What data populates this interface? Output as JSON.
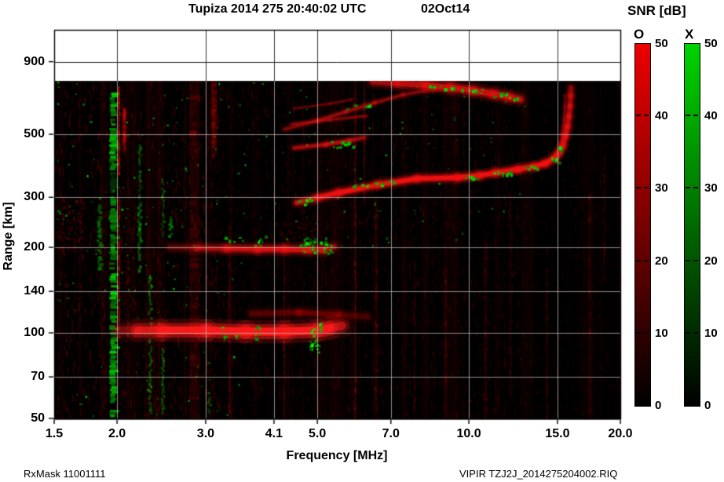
{
  "title": {
    "main": "Tupiza 2014 275 20:40:02 UTC",
    "date": "02Oct14"
  },
  "footer": {
    "left": "RxMask 11001111",
    "right": "VIPIR  TZJ2J_2014275204002.RIQ"
  },
  "colorbar": {
    "title": "SNR [dB]",
    "vmin": 0,
    "vmax": 50,
    "ticks": [
      50,
      40,
      30,
      20,
      10,
      0
    ],
    "bars": [
      {
        "label": "O",
        "top_color": "#ee0000"
      },
      {
        "label": "X",
        "top_color": "#00d400"
      }
    ]
  },
  "chart_data": {
    "type": "heatmap",
    "title": "Tupiza 2014 275 20:40:02 UTC 02Oct14",
    "xlabel": "Frequency [MHz]",
    "ylabel": "Range [km]",
    "x_scale": "log",
    "y_scale": "log",
    "xlim": [
      1.5,
      20.0
    ],
    "ylim": [
      50,
      1165
    ],
    "data_max_range_km": 770,
    "grid": true,
    "legend": "SNR [dB] 0-50; O polarization = red, X polarization = green",
    "x_ticks": [
      {
        "v": 1.5,
        "label": "1.5"
      },
      {
        "v": 2.0,
        "label": "2.0"
      },
      {
        "v": 3.0,
        "label": "3.0"
      },
      {
        "v": 4.1,
        "label": "4.1"
      },
      {
        "v": 5.0,
        "label": "5.0"
      },
      {
        "v": 7.0,
        "label": "7.0"
      },
      {
        "v": 10.0,
        "label": "10.0"
      },
      {
        "v": 15.0,
        "label": "15.0"
      },
      {
        "v": 20.0,
        "label": "20.0"
      }
    ],
    "y_ticks": [
      {
        "v": 900,
        "label": "900"
      },
      {
        "v": 500,
        "label": "500"
      },
      {
        "v": 300,
        "label": "300"
      },
      {
        "v": 200,
        "label": "200"
      },
      {
        "v": 140,
        "label": "140"
      },
      {
        "v": 100,
        "label": "100"
      },
      {
        "v": 70,
        "label": "70"
      },
      {
        "v": 50,
        "label": "50"
      }
    ],
    "noise": {
      "seed": 20140275,
      "columns": 44,
      "red_dashes": 5200,
      "red_specks": 2600,
      "green_specks": 240
    },
    "traces": [
      {
        "name": "E-layer-main",
        "color": "#ff1a1a",
        "w": 13,
        "pts": [
          [
            2.02,
            102,
            0.15
          ],
          [
            2.2,
            102,
            0.5
          ],
          [
            2.45,
            102,
            0.95
          ],
          [
            3.0,
            102,
            1
          ],
          [
            3.6,
            101,
            1
          ],
          [
            4.3,
            101,
            1
          ],
          [
            5.0,
            102,
            1
          ],
          [
            5.3,
            104,
            0.8
          ],
          [
            5.6,
            106,
            0.3
          ]
        ]
      },
      {
        "name": "E-layer-upper-echo",
        "color": "#c00000",
        "w": 8,
        "pts": [
          [
            3.7,
            117,
            0.25
          ],
          [
            4.6,
            118,
            0.4
          ],
          [
            5.5,
            116,
            0.35
          ],
          [
            6.3,
            114,
            0.15
          ]
        ]
      },
      {
        "name": "layer-200km",
        "color": "#e81010",
        "w": 8,
        "pts": [
          [
            2.55,
            200,
            0.15
          ],
          [
            2.9,
            199,
            0.4
          ],
          [
            3.3,
            198,
            0.7
          ],
          [
            3.8,
            197,
            0.85
          ],
          [
            4.3,
            197,
            0.9
          ],
          [
            4.8,
            196,
            0.85
          ],
          [
            5.15,
            196,
            0.7
          ],
          [
            5.4,
            201,
            0.3
          ]
        ]
      },
      {
        "name": "F-layer-main",
        "color": "#f01010",
        "w": 7,
        "pts": [
          [
            4.55,
            287,
            0.5
          ],
          [
            5.0,
            299,
            0.9
          ],
          [
            5.5,
            311,
            1
          ],
          [
            6.6,
            332,
            1
          ],
          [
            7.9,
            349,
            1
          ],
          [
            9.5,
            352,
            1
          ],
          [
            10.5,
            358,
            1
          ],
          [
            11.3,
            366,
            1
          ],
          [
            12.5,
            376,
            1
          ],
          [
            13.5,
            385,
            1
          ],
          [
            14.2,
            395,
            1
          ],
          [
            14.8,
            412,
            0.95
          ],
          [
            15.1,
            430,
            0.9
          ],
          [
            15.35,
            455,
            0.85
          ],
          [
            15.55,
            492,
            0.75
          ],
          [
            15.7,
            532,
            0.65
          ],
          [
            15.8,
            578,
            0.55
          ],
          [
            15.88,
            628,
            0.5
          ],
          [
            15.93,
            682,
            0.45
          ],
          [
            15.96,
            728,
            0.4
          ]
        ]
      },
      {
        "name": "F-layer-x-asymptote",
        "color": "#d01010",
        "w": 3,
        "pts": [
          [
            14.95,
            402,
            0.5
          ],
          [
            15.2,
            445,
            0.45
          ],
          [
            15.35,
            500,
            0.4
          ],
          [
            15.45,
            560,
            0.35
          ],
          [
            15.5,
            625,
            0.3
          ],
          [
            15.53,
            685,
            0.25
          ]
        ]
      },
      {
        "name": "F-satellite-trace",
        "color": "#e01010",
        "w": 5,
        "pts": [
          [
            4.5,
            447,
            0.5
          ],
          [
            5.2,
            460,
            0.7
          ],
          [
            5.8,
            475,
            0.65
          ],
          [
            6.2,
            487,
            0.4
          ]
        ]
      },
      {
        "name": "spread-streak-mid",
        "color": "#d01010",
        "w": 3.5,
        "pts": [
          [
            4.45,
            543,
            0.4
          ],
          [
            5.3,
            562,
            0.5
          ],
          [
            6.25,
            580,
            0.35
          ]
        ]
      },
      {
        "name": "spread-streak-high",
        "color": "#c81010",
        "w": 3,
        "pts": [
          [
            4.5,
            616,
            0.3
          ],
          [
            5.3,
            640,
            0.35
          ],
          [
            5.85,
            662,
            0.3
          ]
        ]
      },
      {
        "name": "oblique-arc",
        "color": "#d01010",
        "w": 4.5,
        "pts": [
          [
            4.3,
            520,
            0.35
          ],
          [
            5.0,
            558,
            0.5
          ],
          [
            5.7,
            600,
            0.55
          ],
          [
            6.5,
            645,
            0.5
          ],
          [
            7.4,
            688,
            0.45
          ],
          [
            8.5,
            718,
            0.4
          ],
          [
            9.4,
            724,
            0.35
          ]
        ]
      },
      {
        "name": "high-band-descending",
        "color": "#e01010",
        "w": 9,
        "pts": [
          [
            6.45,
            766,
            0.5
          ],
          [
            7.2,
            756,
            0.65
          ],
          [
            8.2,
            744,
            0.8
          ],
          [
            9.2,
            730,
            0.85
          ],
          [
            10.2,
            712,
            0.85
          ],
          [
            11.2,
            692,
            0.8
          ],
          [
            12.0,
            676,
            0.75
          ],
          [
            12.65,
            663,
            0.7
          ]
        ]
      }
    ],
    "green_clusters": [
      {
        "f": 3.27,
        "r": 100,
        "df": 0.06,
        "dr": 5,
        "n": 7
      },
      {
        "f": 3.45,
        "r": 96,
        "df": 0.04,
        "dr": 4,
        "n": 4
      },
      {
        "f": 3.8,
        "r": 101,
        "df": 0.05,
        "dr": 6,
        "n": 8
      },
      {
        "f": 4.88,
        "r": 97,
        "df": 0.08,
        "dr": 9,
        "n": 16
      },
      {
        "f": 5.05,
        "r": 104,
        "df": 0.05,
        "dr": 5,
        "n": 6
      },
      {
        "f": 5.0,
        "r": 89,
        "df": 0.05,
        "dr": 4,
        "n": 5
      },
      {
        "f": 3.6,
        "r": 212,
        "df": 0.35,
        "dr": 10,
        "n": 12
      },
      {
        "f": 4.9,
        "r": 205,
        "df": 0.3,
        "dr": 12,
        "n": 26
      },
      {
        "f": 5.25,
        "r": 198,
        "df": 0.12,
        "dr": 8,
        "n": 10
      },
      {
        "f": 4.7,
        "r": 293,
        "df": 0.18,
        "dr": 9,
        "n": 10
      },
      {
        "f": 5.9,
        "r": 328,
        "df": 0.12,
        "dr": 5,
        "n": 4
      },
      {
        "f": 6.2,
        "r": 332,
        "df": 0.1,
        "dr": 5,
        "n": 4
      },
      {
        "f": 6.6,
        "r": 338,
        "df": 0.12,
        "dr": 5,
        "n": 4
      },
      {
        "f": 7.0,
        "r": 342,
        "df": 0.1,
        "dr": 5,
        "n": 4
      },
      {
        "f": 10.0,
        "r": 356,
        "df": 0.35,
        "dr": 6,
        "n": 9
      },
      {
        "f": 11.6,
        "r": 368,
        "df": 0.55,
        "dr": 7,
        "n": 12
      },
      {
        "f": 13.3,
        "r": 384,
        "df": 0.45,
        "dr": 7,
        "n": 10
      },
      {
        "f": 14.8,
        "r": 408,
        "df": 0.25,
        "dr": 10,
        "n": 7
      },
      {
        "f": 15.2,
        "r": 440,
        "df": 0.12,
        "dr": 14,
        "n": 5
      },
      {
        "f": 5.6,
        "r": 462,
        "df": 0.3,
        "dr": 12,
        "n": 13
      },
      {
        "f": 6.0,
        "r": 625,
        "df": 0.35,
        "dr": 14,
        "n": 7
      },
      {
        "f": 8.6,
        "r": 740,
        "df": 0.3,
        "dr": 8,
        "n": 5
      },
      {
        "f": 9.3,
        "r": 730,
        "df": 0.4,
        "dr": 10,
        "n": 8
      },
      {
        "f": 10.4,
        "r": 712,
        "df": 0.45,
        "dr": 10,
        "n": 8
      },
      {
        "f": 11.5,
        "r": 692,
        "df": 0.45,
        "dr": 10,
        "n": 8
      },
      {
        "f": 12.3,
        "r": 672,
        "df": 0.3,
        "dr": 8,
        "n": 6
      }
    ],
    "red_patches": [
      {
        "f": 1.63,
        "r": 245,
        "df": 0.09,
        "dr": 55,
        "n": 90,
        "a": 0.3
      },
      {
        "f": 1.63,
        "r": 120,
        "df": 0.07,
        "dr": 35,
        "n": 40,
        "a": 0.18
      },
      {
        "f": 4.5,
        "r": 230,
        "df": 0.5,
        "dr": 22,
        "n": 70,
        "a": 0.22
      },
      {
        "f": 5.6,
        "r": 252,
        "df": 0.8,
        "dr": 15,
        "n": 45,
        "a": 0.15
      }
    ],
    "rfi_stripes_green": [
      {
        "f": 1.97,
        "w": 9,
        "segs": [
          [
            50,
            162,
            0.95
          ],
          [
            168,
            302,
            0.8
          ],
          [
            305,
            375,
            0.3
          ],
          [
            375,
            728,
            0.85
          ]
        ]
      },
      {
        "f": 1.85,
        "w": 5,
        "segs": [
          [
            165,
            300,
            0.6
          ]
        ]
      },
      {
        "f": 2.22,
        "w": 4,
        "segs": [
          [
            165,
            300,
            0.65
          ],
          [
            300,
            460,
            0.4
          ]
        ]
      },
      {
        "f": 2.33,
        "w": 3,
        "segs": [
          [
            52,
            160,
            0.55
          ]
        ]
      },
      {
        "f": 2.47,
        "w": 3,
        "segs": [
          [
            52,
            90,
            0.5
          ],
          [
            220,
            350,
            0.4
          ]
        ]
      },
      {
        "f": 2.56,
        "w": 4,
        "segs": [
          [
            218,
            262,
            0.6
          ]
        ]
      },
      {
        "f": 3.05,
        "w": 3,
        "segs": [
          [
            50,
            62,
            0.45
          ]
        ]
      }
    ],
    "rfi_stripes_red": [
      {
        "f": 2.07,
        "w": 4,
        "segs": [
          [
            440,
            620,
            0.4
          ]
        ]
      },
      {
        "f": 2.02,
        "w": 2.5,
        "segs": [
          [
            95,
            300,
            0.35
          ],
          [
            360,
            740,
            0.5
          ]
        ]
      },
      {
        "f": 2.85,
        "w": 13,
        "segs": [
          [
            50,
            770,
            0.16
          ]
        ]
      },
      {
        "f": 3.12,
        "w": 7,
        "segs": [
          [
            420,
            770,
            0.22
          ]
        ]
      },
      {
        "f": 3.35,
        "w": 3,
        "segs": [
          [
            50,
            240,
            0.15
          ]
        ]
      },
      {
        "f": 4.3,
        "w": 2,
        "segs": [
          [
            50,
            210,
            0.2
          ]
        ]
      },
      {
        "f": 5.95,
        "w": 2.5,
        "segs": [
          [
            50,
            770,
            0.28
          ]
        ]
      },
      {
        "f": 6.2,
        "w": 2,
        "segs": [
          [
            280,
            770,
            0.2
          ]
        ]
      },
      {
        "f": 6.55,
        "w": 4,
        "segs": [
          [
            50,
            300,
            0.15
          ]
        ]
      },
      {
        "f": 7.8,
        "w": 2,
        "segs": [
          [
            50,
            180,
            0.12
          ]
        ]
      },
      {
        "f": 9.0,
        "w": 3,
        "segs": [
          [
            50,
            170,
            0.12
          ]
        ]
      },
      {
        "f": 10.8,
        "w": 4,
        "segs": [
          [
            50,
            210,
            0.12
          ]
        ]
      },
      {
        "f": 12.1,
        "w": 3,
        "segs": [
          [
            60,
            310,
            0.1
          ]
        ]
      },
      {
        "f": 13.3,
        "w": 2,
        "segs": [
          [
            50,
            400,
            0.1
          ]
        ]
      },
      {
        "f": 14.3,
        "w": 3,
        "segs": [
          [
            50,
            170,
            0.1
          ]
        ]
      },
      {
        "f": 17.4,
        "w": 4,
        "segs": [
          [
            50,
            310,
            0.1
          ]
        ]
      },
      {
        "f": 18.6,
        "w": 3,
        "segs": [
          [
            150,
            430,
            0.09
          ]
        ]
      }
    ]
  }
}
